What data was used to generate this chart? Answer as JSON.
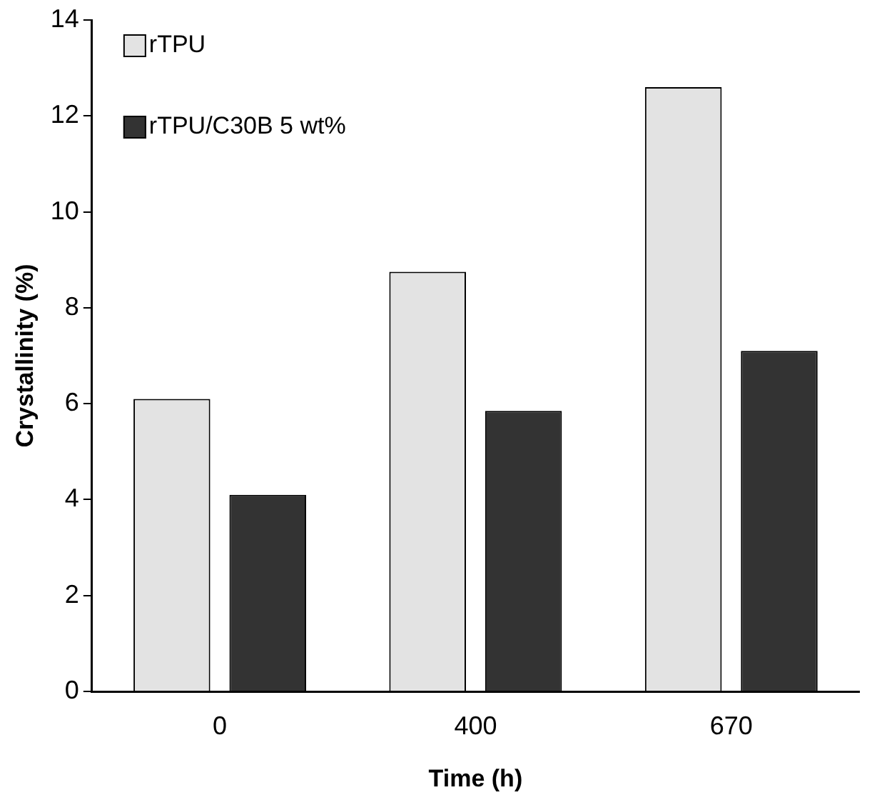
{
  "chart_data": {
    "type": "bar",
    "xlabel": "Time (h)",
    "ylabel": "Crystallinity (%)",
    "categories": [
      "0",
      "400",
      "670"
    ],
    "series": [
      {
        "name": "rTPU",
        "color": "#e3e3e3",
        "values": [
          6.1,
          8.75,
          12.6
        ]
      },
      {
        "name": "rTPU/C30B 5 wt%",
        "color": "#333333",
        "values": [
          4.1,
          5.85,
          7.1
        ]
      }
    ],
    "ylim": [
      0,
      14
    ],
    "yticks": [
      0,
      2,
      4,
      6,
      8,
      10,
      12,
      14
    ],
    "grid": false,
    "legend": "top left"
  }
}
